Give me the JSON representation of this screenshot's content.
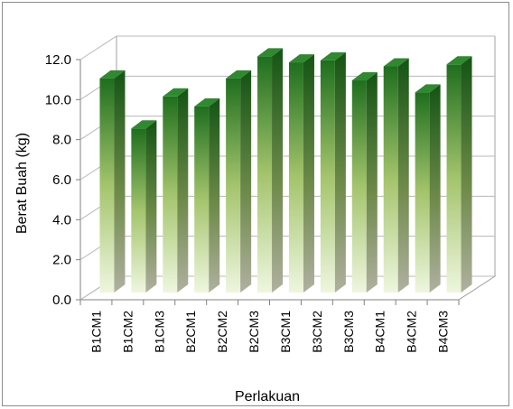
{
  "chart_data": {
    "type": "bar",
    "title": "",
    "xlabel": "Perlakuan",
    "ylabel": "Berat Buah (kg)",
    "ylim": [
      0,
      12
    ],
    "yticks": [
      "0.0",
      "2.0",
      "4.0",
      "6.0",
      "8.0",
      "10.0",
      "12.0"
    ],
    "grid": true,
    "legend": "none",
    "categories": [
      "B1CM1",
      "B1CM2",
      "B1CM3",
      "B2CM1",
      "B2CM2",
      "B2CM3",
      "B3CM1",
      "B3CM2",
      "B3CM3",
      "B4CM1",
      "B4CM2",
      "B4CM3"
    ],
    "values": [
      10.7,
      8.2,
      9.8,
      9.3,
      10.7,
      11.8,
      11.5,
      11.6,
      10.6,
      11.3,
      10.0,
      11.4
    ],
    "colors": {
      "bar_top": "#1e6e1e",
      "bar_bottom": "#eef6df",
      "bar_mid": "#a4c46c",
      "side_dark": "#145414",
      "top_face": "#2f8a2f"
    }
  }
}
